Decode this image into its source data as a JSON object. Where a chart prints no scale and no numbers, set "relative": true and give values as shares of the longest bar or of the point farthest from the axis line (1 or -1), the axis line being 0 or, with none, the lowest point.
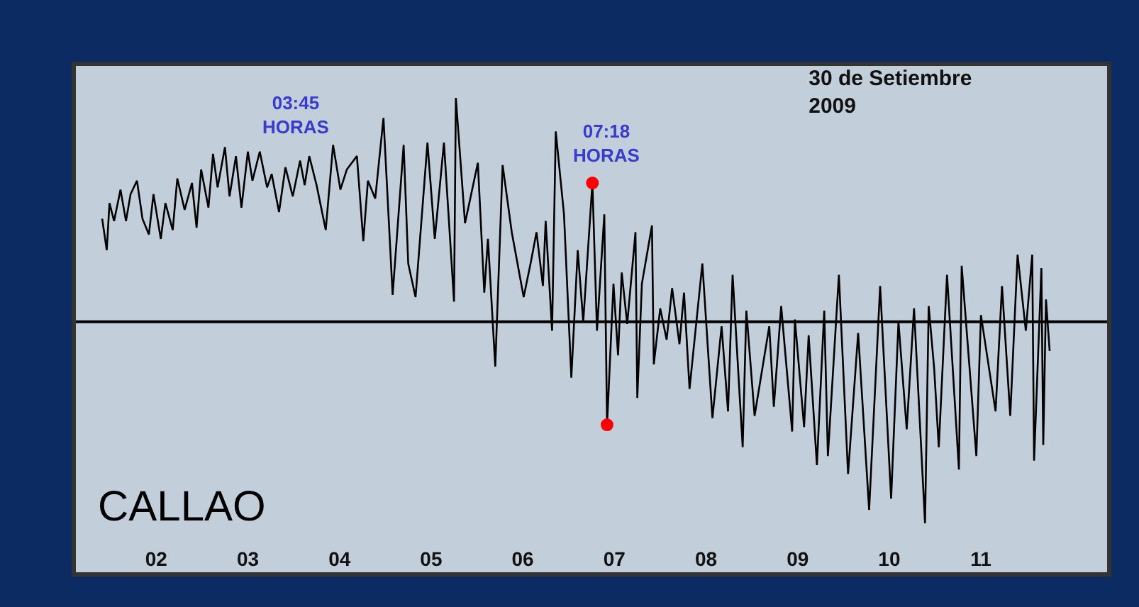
{
  "chart_data": {
    "type": "line",
    "relative": true,
    "title": "30 de Setiembre\n2009",
    "grid": false,
    "tick_labels": "x",
    "xlim": [
      1.1,
      12.4
    ],
    "xticks": [
      {
        "value": 2,
        "label": "02"
      },
      {
        "value": 3,
        "label": "03"
      },
      {
        "value": 4,
        "label": "04"
      },
      {
        "value": 5,
        "label": "05"
      },
      {
        "value": 6,
        "label": "06"
      },
      {
        "value": 7,
        "label": "07"
      },
      {
        "value": 8,
        "label": "08"
      },
      {
        "value": 9,
        "label": "09"
      },
      {
        "value": 10,
        "label": "10"
      },
      {
        "value": 11,
        "label": "11"
      }
    ],
    "series": [
      {
        "color": "#000000",
        "marker": "none",
        "x": [
          1.41,
          1.46,
          1.49,
          1.54,
          1.61,
          1.67,
          1.72,
          1.79,
          1.85,
          1.92,
          1.97,
          2.05,
          2.1,
          2.18,
          2.23,
          2.31,
          2.39,
          2.44,
          2.49,
          2.57,
          2.62,
          2.67,
          2.75,
          2.8,
          2.87,
          2.93,
          3.0,
          3.05,
          3.13,
          3.21,
          3.26,
          3.34,
          3.41,
          3.49,
          3.57,
          3.62,
          3.67,
          3.75,
          3.85,
          3.93,
          4.01,
          4.08,
          4.19,
          4.26,
          4.31,
          4.39,
          4.48,
          4.58,
          4.7,
          4.75,
          4.83,
          4.96,
          5.04,
          5.14,
          5.25,
          5.27,
          5.37,
          5.51,
          5.58,
          5.62,
          5.7,
          5.78,
          5.88,
          6.01,
          6.09,
          6.15,
          6.22,
          6.25,
          6.32,
          6.36,
          6.45,
          6.53,
          6.6,
          6.66,
          6.76,
          6.81,
          6.89,
          6.92,
          6.99,
          7.04,
          7.08,
          7.14,
          7.23,
          7.25,
          7.3,
          7.41,
          7.43,
          7.5,
          7.57,
          7.63,
          7.71,
          7.76,
          7.82,
          7.96,
          8.07,
          8.17,
          8.24,
          8.29,
          8.4,
          8.44,
          8.53,
          8.69,
          8.74,
          8.82,
          8.94,
          8.97,
          9.07,
          9.12,
          9.21,
          9.29,
          9.33,
          9.45,
          9.55,
          9.66,
          9.78,
          9.9,
          10.02,
          10.1,
          10.19,
          10.27,
          10.39,
          10.43,
          10.49,
          10.54,
          10.63,
          10.76,
          10.79,
          10.95,
          11.0,
          11.16,
          11.23,
          11.32,
          11.4,
          11.49,
          11.56,
          11.58,
          11.66,
          11.68,
          11.71,
          11.75
        ],
        "values": [
          0.46,
          0.32,
          0.53,
          0.45,
          0.59,
          0.45,
          0.57,
          0.63,
          0.46,
          0.39,
          0.57,
          0.37,
          0.53,
          0.41,
          0.64,
          0.5,
          0.62,
          0.42,
          0.68,
          0.51,
          0.75,
          0.6,
          0.78,
          0.56,
          0.74,
          0.51,
          0.76,
          0.63,
          0.76,
          0.6,
          0.66,
          0.49,
          0.69,
          0.56,
          0.72,
          0.61,
          0.74,
          0.61,
          0.41,
          0.79,
          0.59,
          0.68,
          0.74,
          0.36,
          0.63,
          0.55,
          0.91,
          0.12,
          0.79,
          0.26,
          0.11,
          0.8,
          0.37,
          0.8,
          0.09,
          1,
          0.44,
          0.71,
          0.13,
          0.37,
          -0.2,
          0.7,
          0.4,
          0.11,
          0.27,
          0.4,
          0.16,
          0.45,
          -0.04,
          0.85,
          0.48,
          -0.25,
          0.32,
          0,
          0.62,
          -0.04,
          0.48,
          -0.46,
          0.17,
          -0.15,
          0.22,
          -0.01,
          0.4,
          -0.34,
          0.17,
          0.43,
          -0.19,
          0.06,
          -0.08,
          0.15,
          -0.1,
          0.13,
          -0.3,
          0.26,
          -0.43,
          -0.02,
          -0.4,
          0.21,
          -0.56,
          0.05,
          -0.42,
          -0.02,
          -0.38,
          0.07,
          -0.49,
          0.01,
          -0.47,
          -0.06,
          -0.64,
          0.05,
          -0.6,
          0.21,
          -0.68,
          -0.05,
          -0.84,
          0.16,
          -0.79,
          0,
          -0.48,
          0.06,
          -0.9,
          0.07,
          -0.21,
          -0.56,
          0.21,
          -0.66,
          0.25,
          -0.6,
          0.03,
          -0.4,
          0.16,
          -0.42,
          0.3,
          -0.04,
          0.3,
          -0.62,
          0.24,
          -0.55,
          0.1,
          -0.13
        ]
      },
      {
        "type": "scatter",
        "color": "#ff0000",
        "marker": "circle",
        "x": [
          6.76,
          6.92
        ],
        "values": [
          0.62,
          -0.46
        ]
      }
    ],
    "ref_lines": [
      {
        "axis": "y",
        "value": 0,
        "color": "#000000"
      }
    ],
    "annotations": [
      "03:45\nHORAS",
      "07:18\nHORAS",
      "CALLAO"
    ]
  }
}
